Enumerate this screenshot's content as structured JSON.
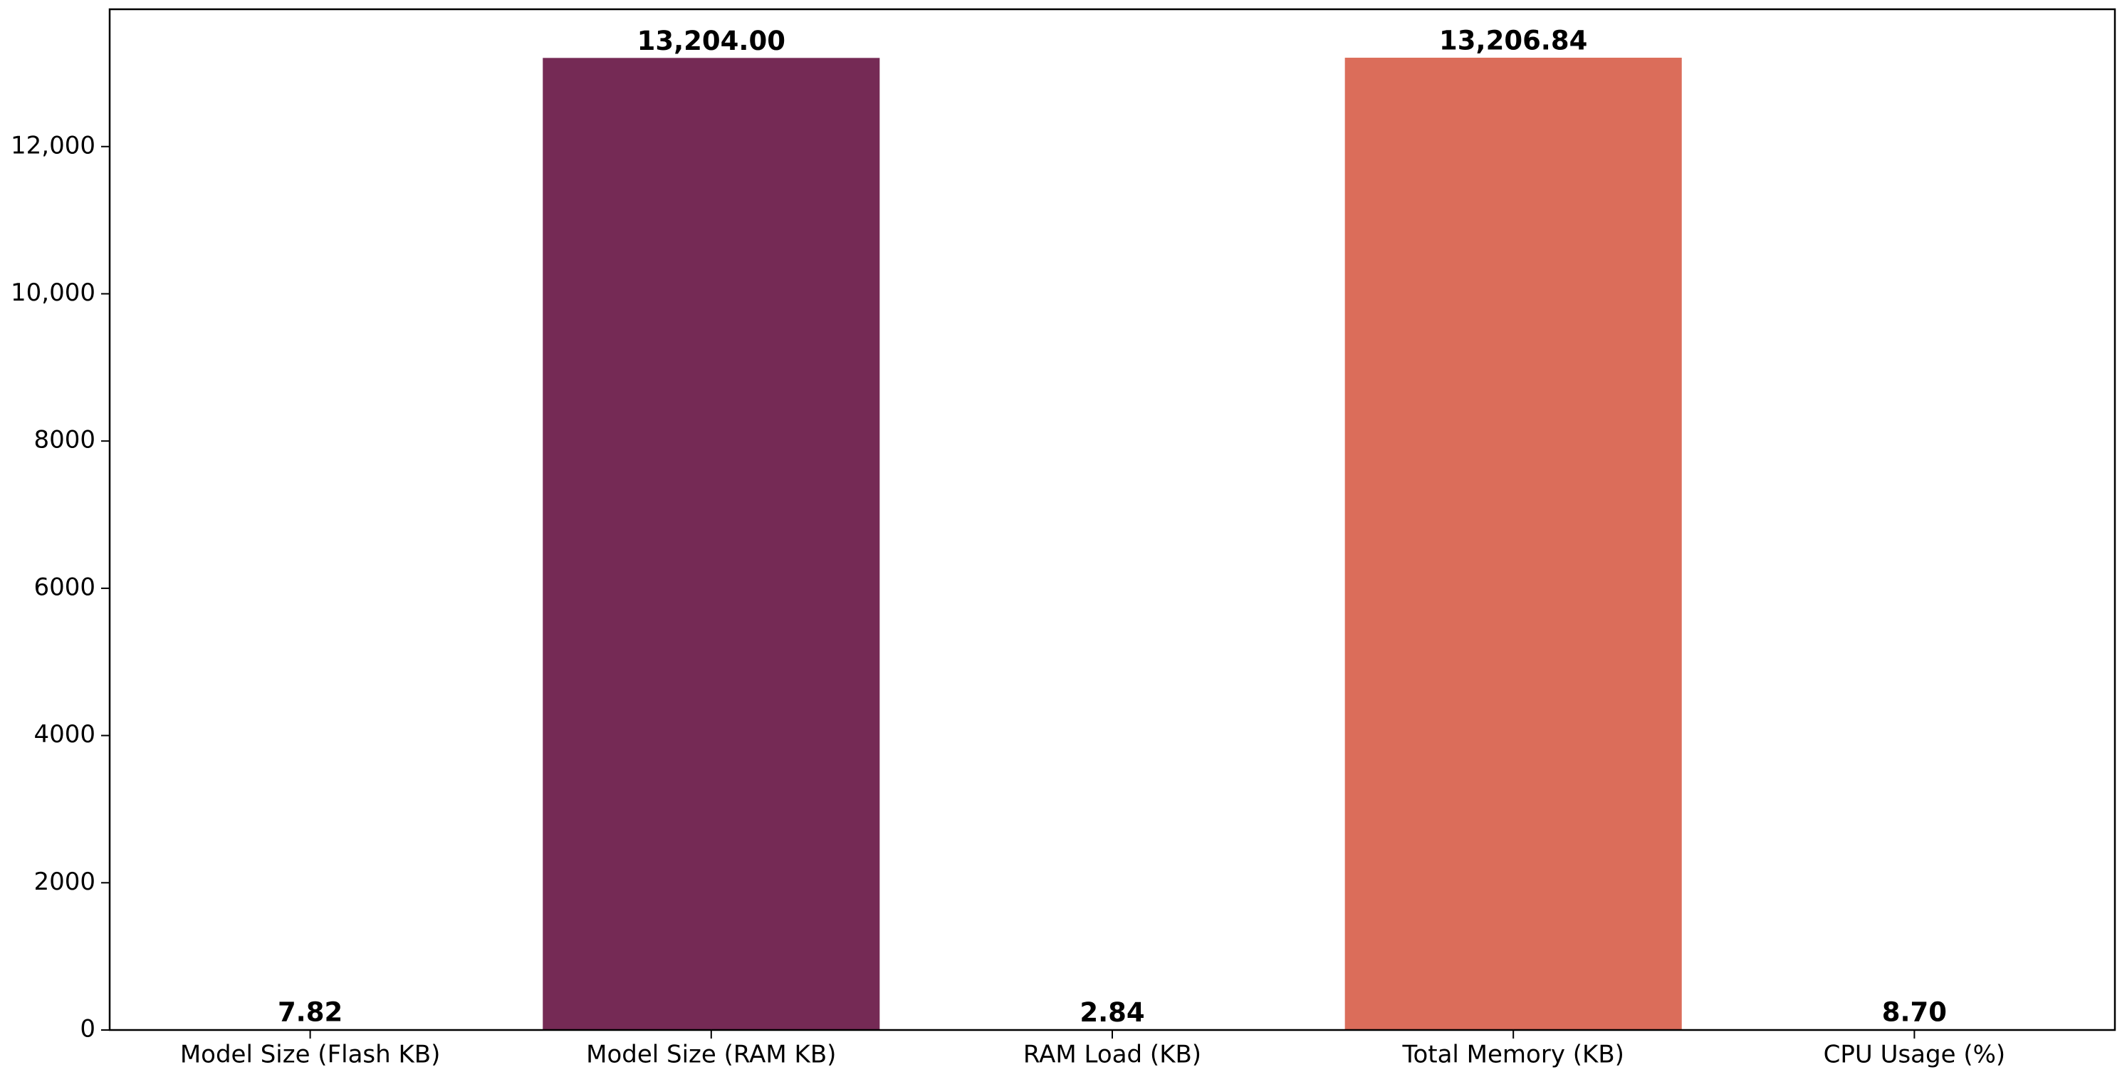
{
  "chart_data": {
    "type": "bar",
    "categories": [
      "Model Size (Flash KB)",
      "Model Size (RAM KB)",
      "RAM Load (KB)",
      "Total Memory (KB)",
      "CPU Usage (%)"
    ],
    "values": [
      7.82,
      13204.0,
      2.84,
      13206.84,
      8.7
    ],
    "value_labels": [
      "7.82",
      "13,204.00",
      "2.84",
      "13,206.84",
      "8.70"
    ],
    "colors": [
      "#3a1d45",
      "#752a55",
      "#b2385a",
      "#db6d5a",
      "#f0a27c"
    ],
    "ylim": [
      0,
      13865
    ],
    "yticks": [
      0,
      2000,
      4000,
      6000,
      8000,
      {
        "value": 10000,
        "label": "10,000"
      },
      {
        "value": 12000,
        "label": "12,000"
      }
    ],
    "grid": false
  }
}
